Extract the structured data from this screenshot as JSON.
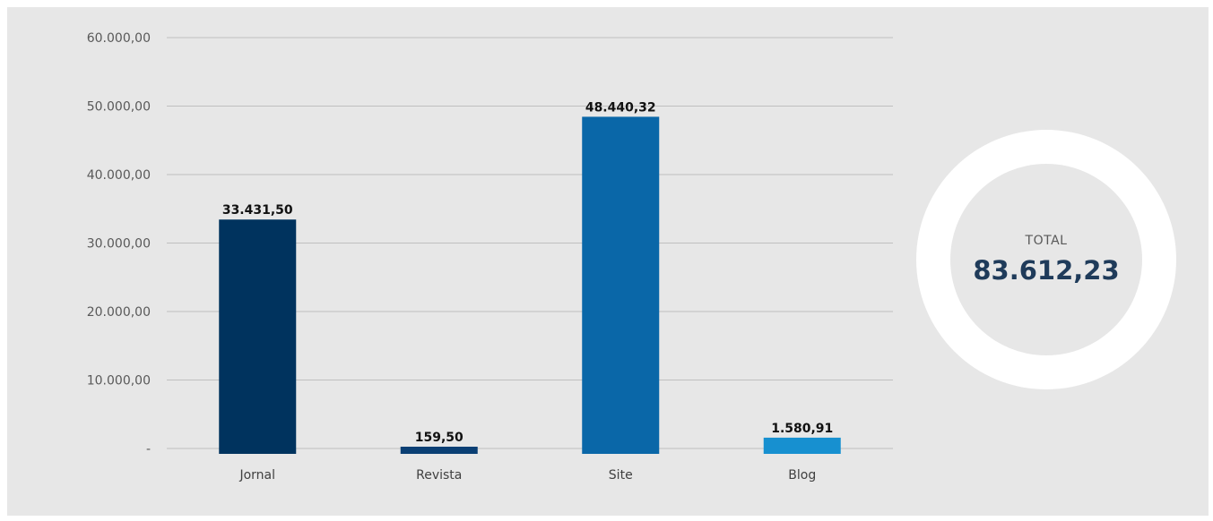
{
  "chart_data": {
    "type": "bar",
    "categories": [
      "Jornal",
      "Revista",
      "Site",
      "Blog"
    ],
    "values": [
      33431.5,
      159.5,
      48440.32,
      1580.91
    ],
    "value_labels": [
      "33.431,50",
      "159,50",
      "48.440,32",
      "1.580,91"
    ],
    "bar_colors": [
      "#00335e",
      "#0a3f74",
      "#0a67a8",
      "#1790d0"
    ],
    "ylim": [
      0,
      60000
    ],
    "yticks": [
      0,
      10000,
      20000,
      30000,
      40000,
      50000,
      60000
    ],
    "ytick_labels": [
      "-",
      "10.000,00",
      "20.000,00",
      "30.000,00",
      "40.000,00",
      "50.000,00",
      "60.000,00"
    ],
    "grid": true,
    "legend": "none"
  },
  "total": {
    "label": "TOTAL",
    "value": "83.612,23"
  }
}
